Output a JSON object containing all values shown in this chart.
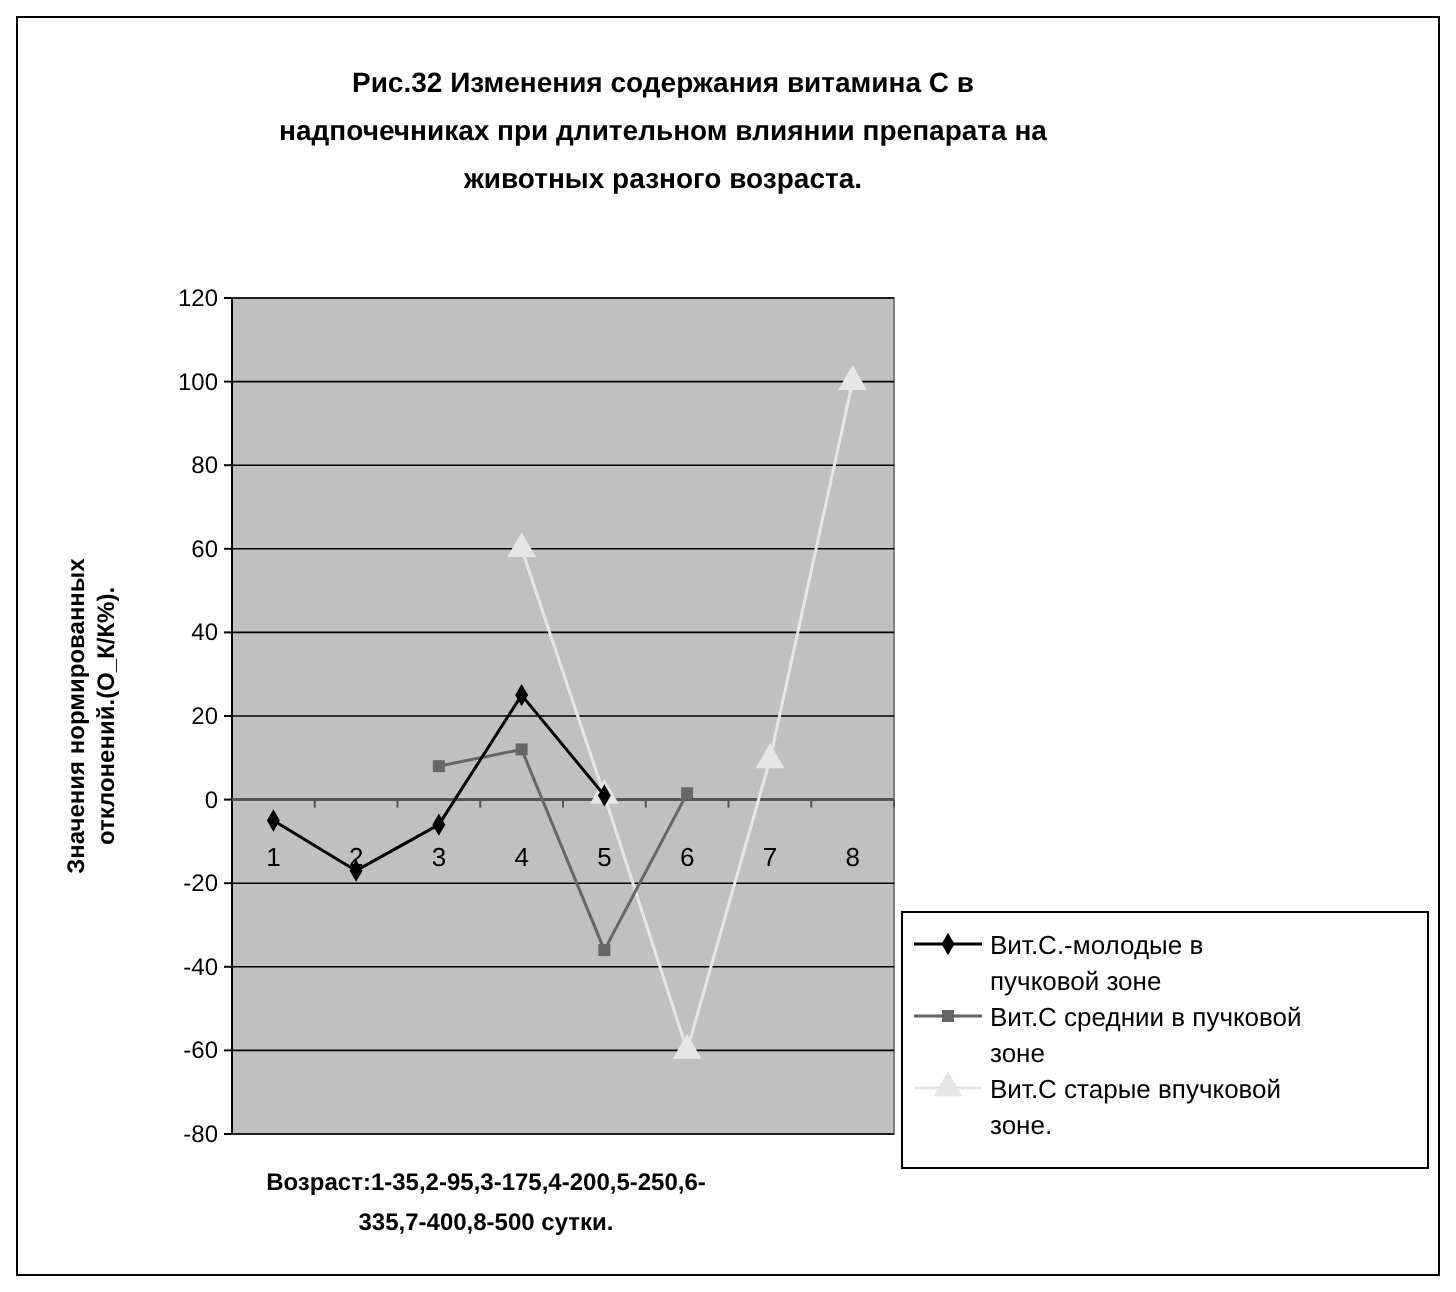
{
  "chart_data": {
    "type": "line",
    "title": "Рис.32 Изменения содержания витамина С в надпочечниках при длительном влиянии препарата на животных разного возраста.",
    "xlabel": "Возраст:1-35,2-95,3-175,4-200,5-250,6-335,7-400,8-500 сутки.",
    "ylabel": "Значения нормированных отклонений.(О_К/К%).",
    "categories": [
      "1",
      "2",
      "3",
      "4",
      "5",
      "6",
      "7",
      "8"
    ],
    "series": [
      {
        "name": "Вит.С.-молодые в пучковой зоне",
        "color": "#000000",
        "marker": "diamond",
        "values": [
          -5,
          -17,
          -6,
          25,
          1,
          null,
          null,
          null
        ]
      },
      {
        "name": "Вит.С среднии в пучковой зоне",
        "color": "#666666",
        "marker": "square",
        "values": [
          null,
          null,
          8,
          12,
          -36,
          1.5,
          null,
          null
        ]
      },
      {
        "name": "Вит.С старые впучковой зоне.",
        "color": "#e6e6e6",
        "marker": "triangle",
        "values": [
          null,
          null,
          null,
          60,
          1,
          -60,
          9.5,
          100
        ]
      }
    ],
    "ylim": [
      -80,
      120
    ],
    "yticks": [
      -80,
      -60,
      -40,
      -20,
      0,
      20,
      40,
      60,
      80,
      100,
      120
    ],
    "grid": "y",
    "legend": "bottom right"
  }
}
